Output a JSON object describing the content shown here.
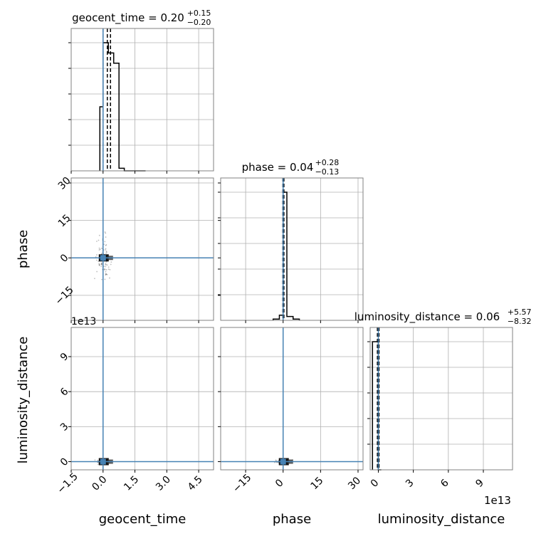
{
  "chart_data": {
    "type": "corner",
    "parameters": [
      "geocent_time",
      "phase",
      "luminosity_distance"
    ],
    "titles": {
      "geocent_time": {
        "label": "geocent_time",
        "median": "0.20",
        "plus": "+0.15",
        "minus": "−0.20"
      },
      "phase": {
        "label": "phase",
        "median": "0.04",
        "plus": "+0.28",
        "minus": "−0.13"
      },
      "luminosity_distance": {
        "label": "luminosity_distance",
        "median": "0.06",
        "plus": "+5.57",
        "minus": "−8.32"
      }
    },
    "axis_labels": {
      "x": [
        "geocent_time",
        "phase",
        "luminosity_distance"
      ],
      "y": [
        "phase",
        "luminosity_distance"
      ]
    },
    "ranges": {
      "geocent_time": [
        -1.5,
        5.2
      ],
      "phase": [
        -25,
        32
      ],
      "luminosity_distance_e13": [
        -0.7,
        11.5
      ]
    },
    "ticks": {
      "geocent_time": [
        -1.5,
        0.0,
        1.5,
        3.0,
        4.5
      ],
      "phase": [
        -15,
        0,
        15,
        30
      ],
      "luminosity_distance_e13": [
        0,
        3,
        6,
        9
      ]
    },
    "tick_labels": {
      "geocent_time": [
        "−1.5",
        "0.0",
        "1.5",
        "3.0",
        "4.5"
      ],
      "phase": [
        "−15",
        "0",
        "15",
        "30"
      ],
      "luminosity_distance": [
        "0",
        "3",
        "6",
        "9"
      ]
    },
    "offset_text": "1e13",
    "truths": {
      "geocent_time": 0.0,
      "phase": 0.0,
      "luminosity_distance_e13": 0.0
    },
    "quantiles": {
      "geocent_time": [
        0.0,
        0.2,
        0.35
      ],
      "phase": [
        -0.09,
        0.04,
        0.32
      ],
      "luminosity_distance_e13": [
        -0.08,
        0.0,
        0.06
      ]
    },
    "histograms": {
      "geocent_time": {
        "edges": [
          -0.15,
          0.0,
          0.25,
          0.5,
          0.75,
          1.0,
          1.25,
          1.5,
          1.75,
          2.0
        ],
        "counts": [
          0.5,
          1.0,
          0.92,
          0.84,
          0.02,
          0.0,
          0.0,
          0.0,
          0.0
        ]
      },
      "phase": {
        "edges": [
          -4,
          -1.5,
          0,
          1.5,
          4,
          6.5
        ],
        "counts": [
          0.01,
          0.04,
          1.0,
          0.03,
          0.01
        ]
      },
      "luminosity_distance_e13": {
        "edges": [
          -0.5,
          0.0,
          0.25
        ],
        "counts": [
          1.0,
          0.0
        ]
      }
    },
    "grid": true,
    "colors": {
      "truth": "#4682b4",
      "density": "#000000",
      "grid": "#b0b0b0"
    }
  }
}
